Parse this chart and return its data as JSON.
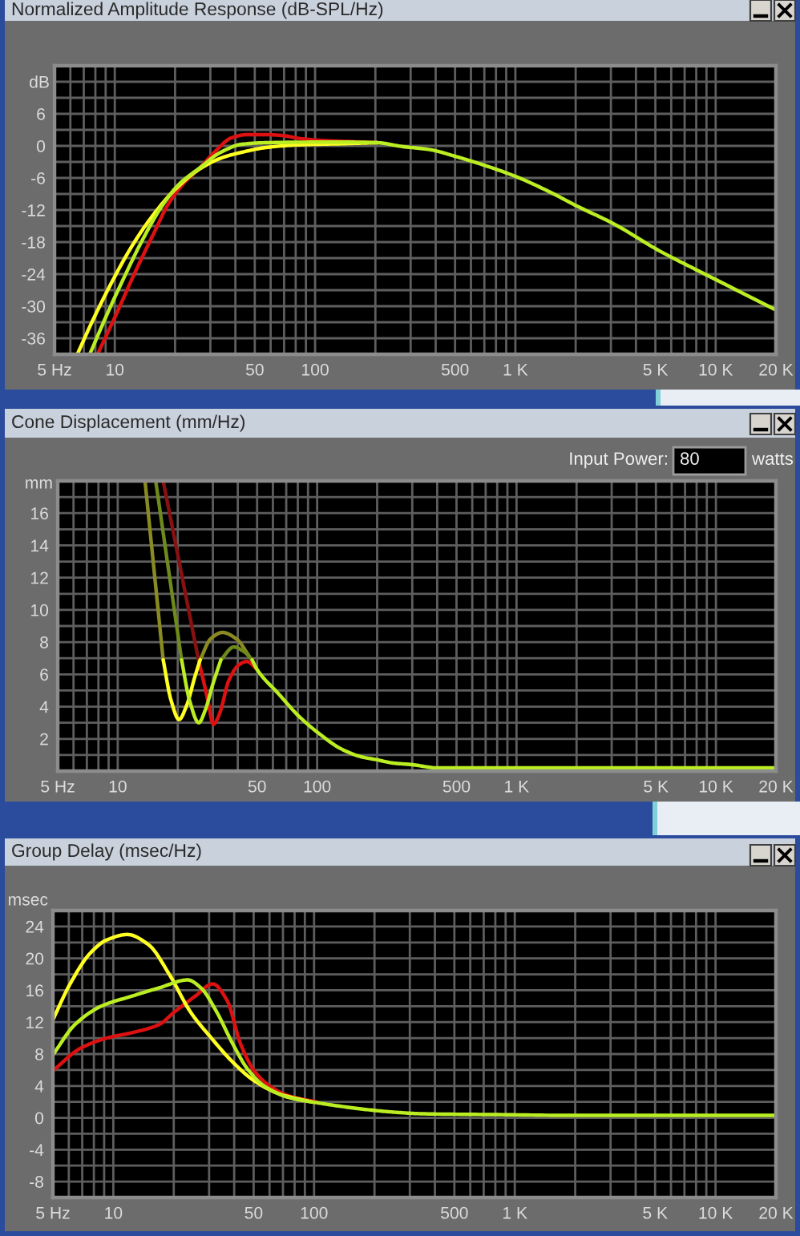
{
  "chart_data": [
    {
      "type": "line",
      "title": "Normalized Amplitude Response (dB-SPL/Hz)",
      "ylabel": "dB",
      "log": "x",
      "grid": true,
      "xlim": [
        5,
        20000
      ],
      "ylim": [
        -39,
        15
      ],
      "xticks": [
        {
          "value": 5,
          "label": "5 Hz"
        },
        {
          "value": 6,
          "label": null
        },
        {
          "value": 7,
          "label": null
        },
        {
          "value": 8,
          "label": null
        },
        {
          "value": 9,
          "label": null
        },
        10,
        {
          "value": 20,
          "label": null
        },
        {
          "value": 30,
          "label": null
        },
        {
          "value": 40,
          "label": null
        },
        50,
        {
          "value": 60,
          "label": null
        },
        {
          "value": 70,
          "label": null
        },
        {
          "value": 80,
          "label": null
        },
        {
          "value": 90,
          "label": null
        },
        100,
        {
          "value": 200,
          "label": null
        },
        {
          "value": 300,
          "label": null
        },
        {
          "value": 400,
          "label": null
        },
        500,
        {
          "value": 600,
          "label": null
        },
        {
          "value": 700,
          "label": null
        },
        {
          "value": 800,
          "label": null
        },
        {
          "value": 900,
          "label": null
        },
        {
          "value": 1000,
          "label": "1 K"
        },
        {
          "value": 2000,
          "label": null
        },
        {
          "value": 3000,
          "label": null
        },
        {
          "value": 4000,
          "label": null
        },
        {
          "value": 5000,
          "label": "5 K"
        },
        {
          "value": 6000,
          "label": null
        },
        {
          "value": 7000,
          "label": null
        },
        {
          "value": 8000,
          "label": null
        },
        {
          "value": 9000,
          "label": null
        },
        {
          "value": 10000,
          "label": "10 K"
        },
        {
          "value": 20000,
          "label": "20 K"
        }
      ],
      "yticks": [
        -36,
        {
          "value": -33,
          "label": null
        },
        -30,
        {
          "value": -27,
          "label": null
        },
        -24,
        {
          "value": -21,
          "label": null
        },
        -18,
        {
          "value": -15,
          "label": null
        },
        -12,
        {
          "value": -9,
          "label": null
        },
        -6,
        {
          "value": -3,
          "label": null
        },
        0,
        {
          "value": 3,
          "label": null
        },
        6,
        {
          "value": 9,
          "label": null
        },
        {
          "value": 12,
          "label": null
        }
      ],
      "series": [
        {
          "color": "#dd1111",
          "x": [
            8.2,
            10.2,
            12.5,
            15.5,
            18.5,
            22.2,
            26.6,
            31.8,
            38.2,
            45.6,
            57,
            70,
            83,
            110,
            150,
            205
          ],
          "values": [
            -39,
            -31.4,
            -24,
            -16.7,
            -10.9,
            -6.9,
            -4.1,
            -1,
            1.5,
            2.1,
            2.1,
            1.9,
            1.4,
            1,
            0.8,
            0.6
          ]
        },
        {
          "color": "#ffff22",
          "x": [
            6.5,
            7.75,
            9.6,
            12.2,
            15.5,
            19.7,
            26.6,
            33.8,
            43,
            57,
            83,
            135,
            205
          ],
          "values": [
            -39,
            -32.7,
            -25.7,
            -18.7,
            -13,
            -8.4,
            -4.3,
            -2.3,
            -1.2,
            -0.3,
            0.2,
            0.4,
            0.6
          ]
        },
        {
          "color": "#bbee22",
          "x": [
            7.5,
            9.1,
            11.1,
            13.7,
            16.9,
            20.9,
            26.6,
            33.8,
            43,
            57,
            100,
            150,
            205,
            270,
            374,
            506,
            683,
            1000,
            1500,
            2014,
            3068,
            5272,
            8020,
            12000,
            20000
          ],
          "values": [
            -39,
            -31.7,
            -24.7,
            -17.7,
            -11.7,
            -7.2,
            -4.1,
            -1.2,
            0.3,
            0.6,
            0.7,
            0.7,
            0.6,
            -0.1,
            -0.7,
            -2,
            -3.5,
            -5.7,
            -8.7,
            -11.2,
            -14.5,
            -19.7,
            -23.2,
            -26.5,
            -30.7
          ]
        }
      ]
    },
    {
      "type": "line",
      "title": "Cone Displacement (mm/Hz)",
      "ylabel": "mm",
      "log": "x",
      "grid": true,
      "annotations": [
        "Input Power:",
        "80",
        "watts"
      ],
      "xlim": [
        5,
        20000
      ],
      "ylim": [
        0,
        18
      ],
      "xticks": [
        {
          "value": 5,
          "label": "5 Hz"
        },
        {
          "value": 6,
          "label": null
        },
        {
          "value": 7,
          "label": null
        },
        {
          "value": 8,
          "label": null
        },
        {
          "value": 9,
          "label": null
        },
        10,
        {
          "value": 20,
          "label": null
        },
        {
          "value": 30,
          "label": null
        },
        {
          "value": 40,
          "label": null
        },
        50,
        {
          "value": 60,
          "label": null
        },
        {
          "value": 70,
          "label": null
        },
        {
          "value": 80,
          "label": null
        },
        {
          "value": 90,
          "label": null
        },
        100,
        {
          "value": 200,
          "label": null
        },
        {
          "value": 300,
          "label": null
        },
        {
          "value": 400,
          "label": null
        },
        500,
        {
          "value": 600,
          "label": null
        },
        {
          "value": 700,
          "label": null
        },
        {
          "value": 800,
          "label": null
        },
        {
          "value": 900,
          "label": null
        },
        {
          "value": 1000,
          "label": "1 K"
        },
        {
          "value": 2000,
          "label": null
        },
        {
          "value": 3000,
          "label": null
        },
        {
          "value": 4000,
          "label": null
        },
        {
          "value": 5000,
          "label": "5 K"
        },
        {
          "value": 6000,
          "label": null
        },
        {
          "value": 7000,
          "label": null
        },
        {
          "value": 8000,
          "label": null
        },
        {
          "value": 9000,
          "label": null
        },
        {
          "value": 10000,
          "label": "10 K"
        },
        {
          "value": 20000,
          "label": "20 K"
        }
      ],
      "yticks": [
        {
          "value": 1,
          "label": null
        },
        2,
        {
          "value": 3,
          "label": null
        },
        4,
        {
          "value": 5,
          "label": null
        },
        6,
        {
          "value": 7,
          "label": null
        },
        8,
        {
          "value": 9,
          "label": null
        },
        10,
        {
          "value": 11,
          "label": null
        },
        12,
        {
          "value": 13,
          "label": null
        },
        14,
        {
          "value": 15,
          "label": null
        },
        16,
        {
          "value": 17,
          "label": null
        }
      ],
      "series": [
        {
          "color": "#881111",
          "x": [
            16.9,
            25.5
          ],
          "values": [
            18,
            6.8
          ]
        },
        {
          "color": "#dd1111",
          "x": [
            25.5,
            26.8,
            28.3,
            30.2,
            31.5,
            32.9,
            36,
            40.6,
            44.4,
            50
          ],
          "values": [
            6.8,
            5.7,
            4.4,
            2.9,
            3.2,
            3.8,
            5.6,
            6.6,
            6.8,
            6.3
          ]
        },
        {
          "color": "#8a8a22",
          "x": [
            13.7,
            16.9,
            21,
            25.9,
            29.2,
            33.5,
            39.4,
            45.8
          ],
          "values": [
            18,
            6.9,
            null,
            6.9,
            8.2,
            8.6,
            8.2,
            7.1
          ]
        },
        {
          "color": "#ffff22",
          "x": [
            16.9,
            18.5,
            20.3,
            22.2,
            24.3,
            25.9
          ],
          "values": [
            6.9,
            4.4,
            3.2,
            4.1,
            5.8,
            6.9
          ]
        },
        {
          "color": "#6f8a1c",
          "x": [
            15.5,
            20.9,
            26,
            32.9,
            38.2,
            43.1,
            47.2
          ],
          "values": [
            18,
            6.9,
            null,
            6.9,
            7.7,
            7.4,
            6.9
          ]
        },
        {
          "color": "#bbee22",
          "x": [
            20.9,
            22.9,
            25.5,
            27.5,
            30,
            32.9,
            40,
            47.2,
            50,
            64,
            81,
            103,
            131,
            165,
            200,
            240,
            300,
            400,
            1000,
            20000
          ],
          "values": [
            6.9,
            4.4,
            3,
            3.8,
            5.4,
            6.9,
            null,
            6.9,
            6.3,
            4.8,
            3.4,
            2.3,
            1.4,
            0.9,
            0.7,
            0.5,
            0.4,
            0.2,
            0.2,
            0.2
          ]
        }
      ]
    },
    {
      "type": "line",
      "title": "Group Delay (msec/Hz)",
      "ylabel": "msec",
      "log": "x",
      "grid": true,
      "xlim": [
        5,
        20000
      ],
      "ylim": [
        -10,
        26
      ],
      "xticks": [
        {
          "value": 5,
          "label": "5 Hz"
        },
        {
          "value": 6,
          "label": null
        },
        {
          "value": 7,
          "label": null
        },
        {
          "value": 8,
          "label": null
        },
        {
          "value": 9,
          "label": null
        },
        10,
        {
          "value": 20,
          "label": null
        },
        {
          "value": 30,
          "label": null
        },
        {
          "value": 40,
          "label": null
        },
        50,
        {
          "value": 60,
          "label": null
        },
        {
          "value": 70,
          "label": null
        },
        {
          "value": 80,
          "label": null
        },
        {
          "value": 90,
          "label": null
        },
        100,
        {
          "value": 200,
          "label": null
        },
        {
          "value": 300,
          "label": null
        },
        {
          "value": 400,
          "label": null
        },
        500,
        {
          "value": 600,
          "label": null
        },
        {
          "value": 700,
          "label": null
        },
        {
          "value": 800,
          "label": null
        },
        {
          "value": 900,
          "label": null
        },
        {
          "value": 1000,
          "label": "1 K"
        },
        {
          "value": 2000,
          "label": null
        },
        {
          "value": 3000,
          "label": null
        },
        {
          "value": 4000,
          "label": null
        },
        {
          "value": 5000,
          "label": "5 K"
        },
        {
          "value": 6000,
          "label": null
        },
        {
          "value": 7000,
          "label": null
        },
        {
          "value": 8000,
          "label": null
        },
        {
          "value": 9000,
          "label": null
        },
        {
          "value": 10000,
          "label": "10 K"
        },
        {
          "value": 20000,
          "label": "20 K"
        }
      ],
      "yticks": [
        -8,
        {
          "value": -6,
          "label": null
        },
        -4,
        {
          "value": -2,
          "label": null
        },
        0,
        {
          "value": 2,
          "label": null
        },
        4,
        {
          "value": 6,
          "label": null
        },
        8,
        {
          "value": 10,
          "label": null
        },
        12,
        {
          "value": 14,
          "label": null
        },
        16,
        {
          "value": 18,
          "label": null
        },
        20,
        {
          "value": 22,
          "label": null
        },
        24
      ],
      "series": [
        {
          "color": "#dd1111",
          "x": [
            5,
            6.84,
            9.25,
            12.5,
            16.9,
            20.2,
            25.7,
            31.3,
            36.9,
            43,
            50,
            60,
            76,
            103
          ],
          "values": [
            5.9,
            8.7,
            10,
            10.7,
            11.7,
            13.3,
            15.3,
            16.8,
            14.7,
            9.3,
            6,
            4,
            2.7,
            2
          ]
        },
        {
          "color": "#ffff22",
          "x": [
            5,
            6.06,
            7.7,
            9.25,
            11.75,
            15,
            19,
            24.2,
            30.8,
            39.3,
            50,
            67,
            97
          ],
          "values": [
            12.3,
            16.7,
            20.7,
            22.3,
            23,
            21.7,
            18,
            13.3,
            10,
            7,
            4.7,
            3,
            2
          ]
        },
        {
          "color": "#bbee22",
          "x": [
            5,
            6.44,
            8.7,
            12.5,
            16.9,
            23.5,
            27.3,
            32.7,
            39.3,
            47,
            56.4,
            76,
            103,
            140,
            188,
            253,
            353,
            822,
            2000,
            20000
          ],
          "values": [
            7.9,
            11.7,
            14,
            15.3,
            16.3,
            17.3,
            16.3,
            13.3,
            9.3,
            6,
            4,
            2.5,
            1.9,
            1.4,
            1,
            0.7,
            0.5,
            0.4,
            0.3,
            0.3
          ]
        }
      ]
    }
  ]
}
